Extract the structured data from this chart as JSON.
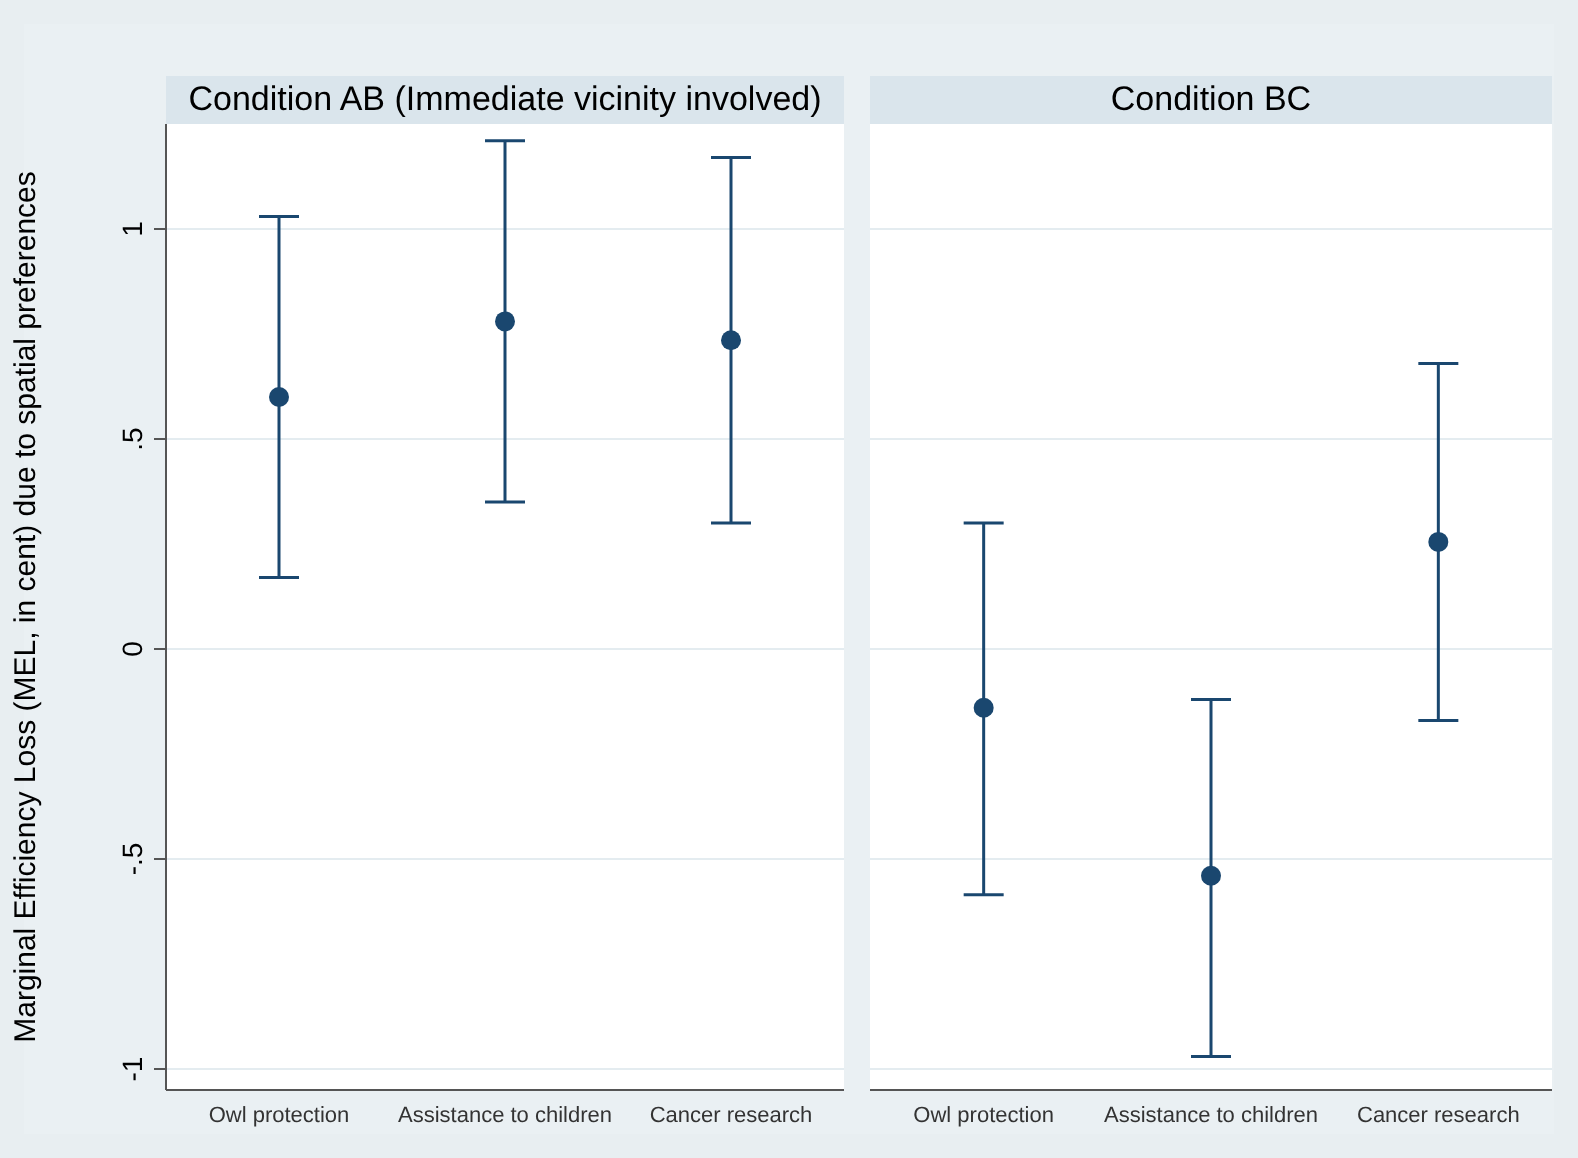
{
  "chart_data": [
    {
      "type": "scatter",
      "title": "Condition AB (Immediate vicinity involved)",
      "ylabel": "Marginal Efficiency Loss (MEL, in cent) due to spatial preferences",
      "categories": [
        "Owl protection",
        "Assistance to children",
        "Cancer research"
      ],
      "series": [
        {
          "color": "#1a476f",
          "values": [
            0.6,
            0.78,
            0.735
          ],
          "errors": [
            [
              0.17,
              1.03
            ],
            [
              0.35,
              1.21
            ],
            [
              0.3,
              1.17
            ]
          ]
        }
      ],
      "ylim": [
        -1.05,
        1.25
      ],
      "yticks": [
        {
          "value": -1,
          "label": "-1"
        },
        {
          "value": -0.5,
          "label": "-.5"
        },
        {
          "value": 0,
          "label": "0"
        },
        {
          "value": 0.5,
          "label": ".5"
        },
        {
          "value": 1,
          "label": "1"
        }
      ],
      "grid": "y",
      "marker": "circle"
    },
    {
      "type": "scatter",
      "title": "Condition BC",
      "categories": [
        "Owl protection",
        "Assistance to children",
        "Cancer research"
      ],
      "series": [
        {
          "color": "#1a476f",
          "values": [
            -0.14,
            -0.54,
            0.255
          ],
          "errors": [
            [
              -0.585,
              0.3
            ],
            [
              -0.97,
              -0.12
            ],
            [
              -0.17,
              0.68
            ]
          ]
        }
      ],
      "ylim": [
        -1.05,
        1.25
      ],
      "yticks": [
        -1,
        -0.5,
        0,
        0.5,
        1
      ],
      "grid": "y",
      "marker": "circle",
      "tick_labels": "x"
    }
  ]
}
